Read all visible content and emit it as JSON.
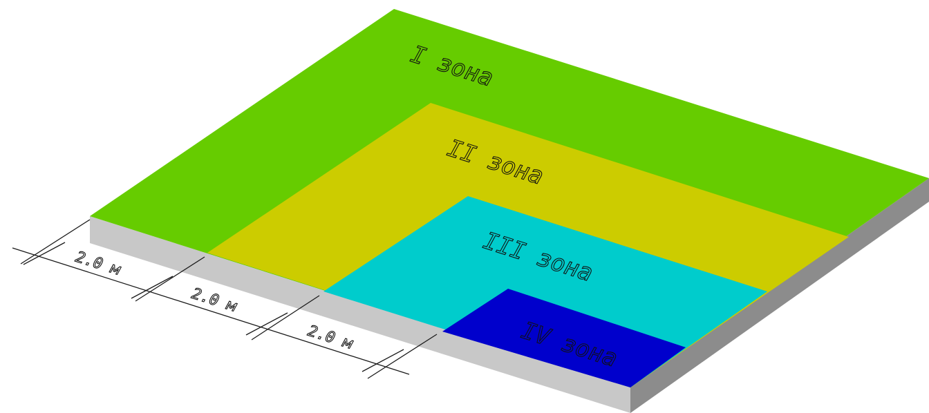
{
  "zones": [
    {
      "label": "I зона",
      "color": "#66cc00"
    },
    {
      "label": "II зона",
      "color": "#cccc00"
    },
    {
      "label": "III зона",
      "color": "#00cccc"
    },
    {
      "label": "IV зона",
      "color": "#0000cc"
    }
  ],
  "slab": {
    "front_side_color": "#c8c8c8",
    "right_side_color": "#8c8c8c"
  },
  "dimensions": [
    {
      "label": "2.0 м"
    },
    {
      "label": "2.0 м"
    },
    {
      "label": "2.0 м"
    }
  ]
}
